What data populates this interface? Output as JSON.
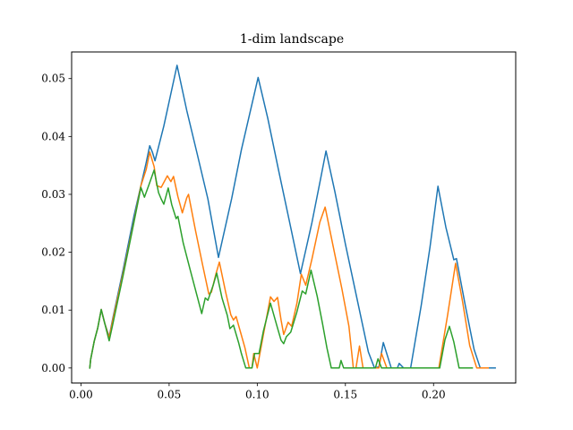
{
  "chart_data": {
    "type": "line",
    "title": "1-dim landscape",
    "xlabel": "",
    "ylabel": "",
    "xlim": [
      -0.0053,
      0.2466
    ],
    "ylim": [
      -0.0026,
      0.0546
    ],
    "grid": false,
    "legend": "none",
    "xticks": [
      0.0,
      0.05,
      0.1,
      0.15,
      0.2
    ],
    "xtick_labels": [
      "0.00",
      "0.05",
      "0.10",
      "0.15",
      "0.20"
    ],
    "yticks": [
      0.0,
      0.01,
      0.02,
      0.03,
      0.04,
      0.05
    ],
    "ytick_labels": [
      "0.00",
      "0.01",
      "0.02",
      "0.03",
      "0.04",
      "0.05"
    ],
    "series": [
      {
        "color": "#1f77b4",
        "points": [
          [
            0.005,
            0.0
          ],
          [
            0.0055,
            0.0015
          ],
          [
            0.0075,
            0.0046
          ],
          [
            0.0095,
            0.0069
          ],
          [
            0.0115,
            0.0101
          ],
          [
            0.0135,
            0.0077
          ],
          [
            0.016,
            0.0054
          ],
          [
            0.018,
            0.0085
          ],
          [
            0.024,
            0.0171
          ],
          [
            0.03,
            0.0262
          ],
          [
            0.034,
            0.0315
          ],
          [
            0.037,
            0.0355
          ],
          [
            0.039,
            0.0384
          ],
          [
            0.0405,
            0.0373
          ],
          [
            0.042,
            0.0358
          ],
          [
            0.047,
            0.0418
          ],
          [
            0.0545,
            0.0523
          ],
          [
            0.06,
            0.0445
          ],
          [
            0.066,
            0.0369
          ],
          [
            0.072,
            0.0292
          ],
          [
            0.078,
            0.0191
          ],
          [
            0.0855,
            0.0293
          ],
          [
            0.091,
            0.0377
          ],
          [
            0.097,
            0.0456
          ],
          [
            0.1005,
            0.0502
          ],
          [
            0.106,
            0.0431
          ],
          [
            0.112,
            0.0343
          ],
          [
            0.118,
            0.0257
          ],
          [
            0.1245,
            0.0163
          ],
          [
            0.131,
            0.0251
          ],
          [
            0.136,
            0.0328
          ],
          [
            0.139,
            0.0375
          ],
          [
            0.144,
            0.0305
          ],
          [
            0.15,
            0.0214
          ],
          [
            0.156,
            0.0128
          ],
          [
            0.163,
            0.0028
          ],
          [
            0.1665,
            0.0
          ],
          [
            0.169,
            0.0002
          ],
          [
            0.1715,
            0.0044
          ],
          [
            0.176,
            0.0
          ],
          [
            0.1795,
            0.0
          ],
          [
            0.1805,
            0.0008
          ],
          [
            0.183,
            0.0
          ],
          [
            0.187,
            0.0
          ],
          [
            0.193,
            0.0108
          ],
          [
            0.198,
            0.0209
          ],
          [
            0.2025,
            0.0314
          ],
          [
            0.207,
            0.0243
          ],
          [
            0.2115,
            0.0187
          ],
          [
            0.213,
            0.0189
          ],
          [
            0.218,
            0.0108
          ],
          [
            0.223,
            0.0032
          ],
          [
            0.2265,
            0.0
          ],
          [
            0.235,
            0.0
          ]
        ]
      },
      {
        "color": "#ff7f0e",
        "points": [
          [
            0.005,
            0.0
          ],
          [
            0.0055,
            0.0015
          ],
          [
            0.0075,
            0.0046
          ],
          [
            0.0095,
            0.0069
          ],
          [
            0.0115,
            0.0101
          ],
          [
            0.0135,
            0.0077
          ],
          [
            0.016,
            0.0052
          ],
          [
            0.018,
            0.0082
          ],
          [
            0.024,
            0.0165
          ],
          [
            0.03,
            0.0253
          ],
          [
            0.034,
            0.0315
          ],
          [
            0.037,
            0.0343
          ],
          [
            0.039,
            0.0373
          ],
          [
            0.0415,
            0.0348
          ],
          [
            0.043,
            0.0315
          ],
          [
            0.0455,
            0.0312
          ],
          [
            0.049,
            0.0332
          ],
          [
            0.051,
            0.0322
          ],
          [
            0.0525,
            0.0331
          ],
          [
            0.055,
            0.0296
          ],
          [
            0.0575,
            0.0268
          ],
          [
            0.06,
            0.0294
          ],
          [
            0.061,
            0.03
          ],
          [
            0.065,
            0.0237
          ],
          [
            0.069,
            0.0178
          ],
          [
            0.0725,
            0.0128
          ],
          [
            0.074,
            0.0131
          ],
          [
            0.0765,
            0.0162
          ],
          [
            0.0785,
            0.0183
          ],
          [
            0.082,
            0.0132
          ],
          [
            0.085,
            0.0092
          ],
          [
            0.0865,
            0.0083
          ],
          [
            0.088,
            0.0089
          ],
          [
            0.0905,
            0.0062
          ],
          [
            0.093,
            0.0035
          ],
          [
            0.0955,
            0.0
          ],
          [
            0.097,
            0.0
          ],
          [
            0.098,
            0.0025
          ],
          [
            0.1,
            0.0
          ],
          [
            0.1035,
            0.0058
          ],
          [
            0.1075,
            0.0123
          ],
          [
            0.1095,
            0.0115
          ],
          [
            0.1115,
            0.0122
          ],
          [
            0.1135,
            0.0083
          ],
          [
            0.115,
            0.0058
          ],
          [
            0.1175,
            0.0079
          ],
          [
            0.1195,
            0.0072
          ],
          [
            0.1225,
            0.0112
          ],
          [
            0.125,
            0.0162
          ],
          [
            0.1275,
            0.0143
          ],
          [
            0.131,
            0.0188
          ],
          [
            0.1355,
            0.0252
          ],
          [
            0.1385,
            0.0278
          ],
          [
            0.143,
            0.0211
          ],
          [
            0.148,
            0.0137
          ],
          [
            0.152,
            0.0072
          ],
          [
            0.1545,
            0.0
          ],
          [
            0.156,
            0.0
          ],
          [
            0.158,
            0.0038
          ],
          [
            0.16,
            0.0
          ],
          [
            0.169,
            0.0
          ],
          [
            0.1705,
            0.0025
          ],
          [
            0.1735,
            0.0
          ],
          [
            0.203,
            0.0
          ],
          [
            0.208,
            0.0092
          ],
          [
            0.2125,
            0.0181
          ],
          [
            0.2165,
            0.0114
          ],
          [
            0.2205,
            0.0039
          ],
          [
            0.2245,
            0.0
          ],
          [
            0.231,
            0.0
          ]
        ]
      },
      {
        "color": "#2ca02c",
        "points": [
          [
            0.005,
            0.0
          ],
          [
            0.0055,
            0.0015
          ],
          [
            0.0075,
            0.0046
          ],
          [
            0.0095,
            0.0069
          ],
          [
            0.0115,
            0.0101
          ],
          [
            0.0135,
            0.0077
          ],
          [
            0.016,
            0.0047
          ],
          [
            0.018,
            0.0075
          ],
          [
            0.024,
            0.0161
          ],
          [
            0.03,
            0.0251
          ],
          [
            0.034,
            0.0312
          ],
          [
            0.036,
            0.0295
          ],
          [
            0.0385,
            0.0316
          ],
          [
            0.0415,
            0.0342
          ],
          [
            0.044,
            0.0303
          ],
          [
            0.0455,
            0.0292
          ],
          [
            0.047,
            0.0283
          ],
          [
            0.0495,
            0.0311
          ],
          [
            0.0515,
            0.0282
          ],
          [
            0.054,
            0.0258
          ],
          [
            0.055,
            0.0262
          ],
          [
            0.058,
            0.0216
          ],
          [
            0.062,
            0.0169
          ],
          [
            0.066,
            0.0123
          ],
          [
            0.0685,
            0.0094
          ],
          [
            0.0705,
            0.0121
          ],
          [
            0.072,
            0.0117
          ],
          [
            0.075,
            0.0143
          ],
          [
            0.077,
            0.0164
          ],
          [
            0.08,
            0.0121
          ],
          [
            0.083,
            0.0091
          ],
          [
            0.0845,
            0.0068
          ],
          [
            0.0865,
            0.0074
          ],
          [
            0.0895,
            0.0043
          ],
          [
            0.091,
            0.0025
          ],
          [
            0.0935,
            0.0
          ],
          [
            0.097,
            0.0
          ],
          [
            0.0985,
            0.0025
          ],
          [
            0.101,
            0.0025
          ],
          [
            0.1035,
            0.0064
          ],
          [
            0.1075,
            0.0112
          ],
          [
            0.1115,
            0.0069
          ],
          [
            0.1135,
            0.0048
          ],
          [
            0.115,
            0.0042
          ],
          [
            0.1165,
            0.0054
          ],
          [
            0.119,
            0.0062
          ],
          [
            0.1225,
            0.0097
          ],
          [
            0.1255,
            0.0133
          ],
          [
            0.1275,
            0.0128
          ],
          [
            0.1305,
            0.0169
          ],
          [
            0.134,
            0.0124
          ],
          [
            0.137,
            0.0077
          ],
          [
            0.1395,
            0.0035
          ],
          [
            0.142,
            0.0
          ],
          [
            0.1465,
            0.0
          ],
          [
            0.1475,
            0.0013
          ],
          [
            0.149,
            0.0
          ],
          [
            0.167,
            0.0
          ],
          [
            0.1685,
            0.0016
          ],
          [
            0.1705,
            0.0
          ],
          [
            0.2035,
            0.0
          ],
          [
            0.2065,
            0.0049
          ],
          [
            0.209,
            0.0072
          ],
          [
            0.2115,
            0.0045
          ],
          [
            0.2145,
            0.0
          ],
          [
            0.222,
            0.0
          ]
        ]
      }
    ]
  }
}
